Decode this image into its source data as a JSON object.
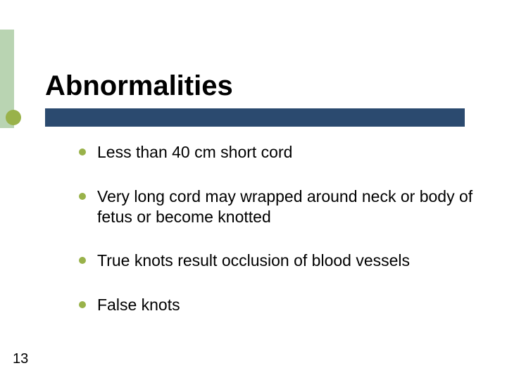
{
  "slide": {
    "title": "Abnormalities",
    "page_number": "13",
    "bullets": [
      "Less than 40 cm short cord",
      "Very long cord may wrapped around neck or body of fetus or become knotted",
      "True knots result occlusion of blood vessels",
      "False knots"
    ],
    "colors": {
      "accent_bar": "#b9d4b2",
      "title_underline": "#2b4a6f",
      "accent_circle": "#99b24a",
      "bullet_dot": "#99b24a",
      "background": "#ffffff",
      "text": "#000000"
    },
    "title_fontsize": 40,
    "body_fontsize": 23
  }
}
